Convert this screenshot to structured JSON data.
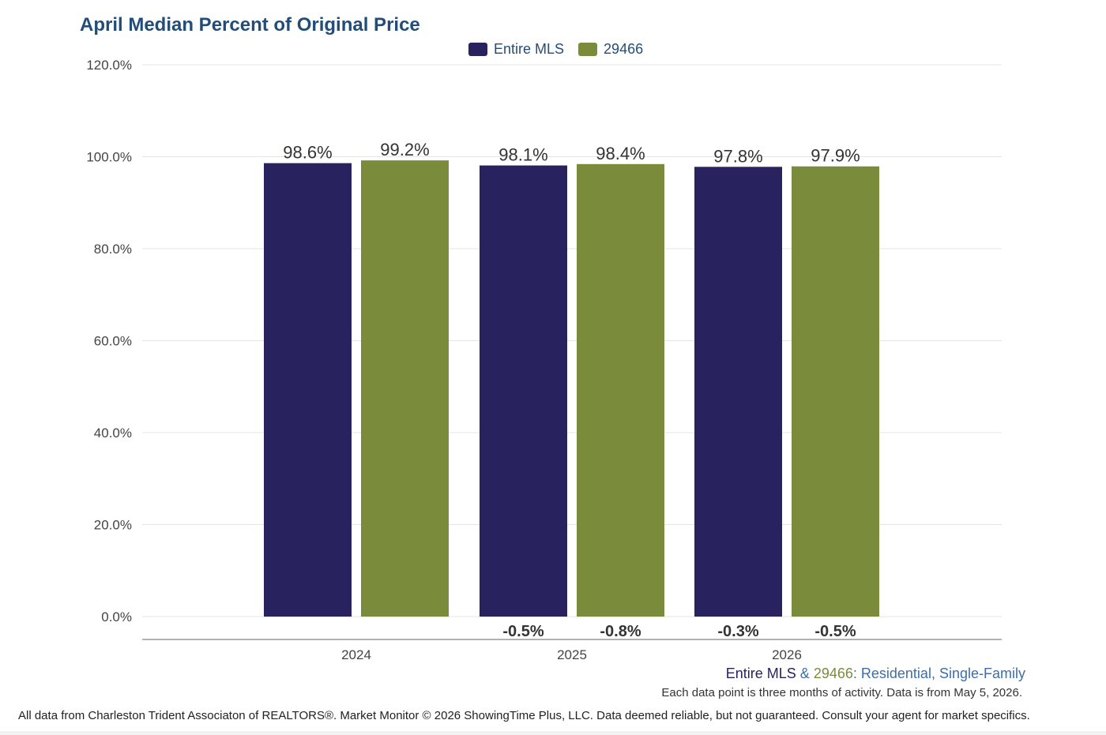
{
  "chart_data": {
    "type": "bar",
    "title": "April Median Percent of Original Price",
    "categories": [
      "2024",
      "2025",
      "2026"
    ],
    "series": [
      {
        "name": "Entire MLS",
        "color": "#28235f",
        "values": [
          98.6,
          98.1,
          97.8
        ],
        "value_labels": [
          "98.6%",
          "98.1%",
          "97.8%"
        ],
        "change_labels": [
          "",
          "-0.5%",
          "-0.3%"
        ]
      },
      {
        "name": "29466",
        "color": "#7a8c3b",
        "values": [
          99.2,
          98.4,
          97.9
        ],
        "value_labels": [
          "99.2%",
          "98.4%",
          "97.9%"
        ],
        "change_labels": [
          "",
          "-0.8%",
          "-0.5%"
        ]
      }
    ],
    "ylim": [
      0,
      120
    ],
    "yticks": [
      0,
      20,
      40,
      60,
      80,
      100,
      120
    ],
    "ytick_labels": [
      "0.0%",
      "20.0%",
      "40.0%",
      "60.0%",
      "80.0%",
      "100.0%",
      "120.0%"
    ],
    "grid": true,
    "legend": "top-center",
    "xlabel": "",
    "ylabel": ""
  },
  "subtitle": {
    "area1": "Entire MLS",
    "amp": " & ",
    "area2": "29466",
    "colon": ": ",
    "type1": "Residential",
    "comma": ", ",
    "type2": "Single-Family"
  },
  "note": "Each data point is three months of activity. Data is from May 5, 2026.",
  "footer": "All data from Charleston Trident Associaton of REALTORS®. Market Monitor © 2026 ShowingTime Plus, LLC. Data deemed reliable, but not guaranteed. Consult your agent for market specifics.",
  "colors": {
    "title": "#234d78",
    "subtitle_link": "#3e6ea8",
    "grid": "#e4e4e4",
    "axis": "#999999",
    "tick_text": "#444444"
  }
}
